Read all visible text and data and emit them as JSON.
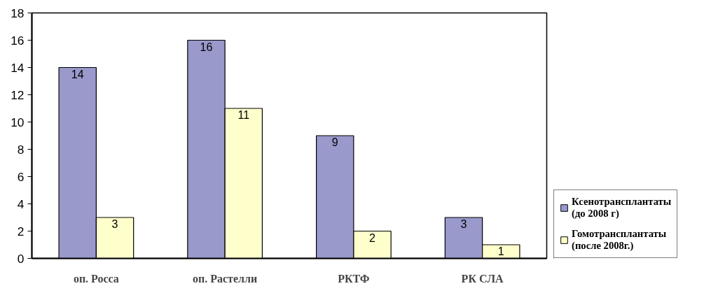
{
  "chart_data": {
    "type": "bar",
    "categories": [
      "оп. Росса",
      "оп. Растелли",
      "РКТФ",
      "РК СЛА"
    ],
    "series": [
      {
        "name": "Ксенотрансплантаты\n(до 2008 г)",
        "color": "#9999cc",
        "values": [
          14,
          16,
          9,
          3
        ]
      },
      {
        "name": "Гомотрансплантаты\n(после 2008г.)",
        "color": "#ffffcc",
        "values": [
          3,
          11,
          2,
          1
        ]
      }
    ],
    "ylim": [
      0,
      18
    ],
    "yticks": [
      0,
      2,
      4,
      6,
      8,
      10,
      12,
      14,
      16,
      18
    ],
    "grid": false,
    "legend": "bottom right",
    "data_labels": true
  }
}
